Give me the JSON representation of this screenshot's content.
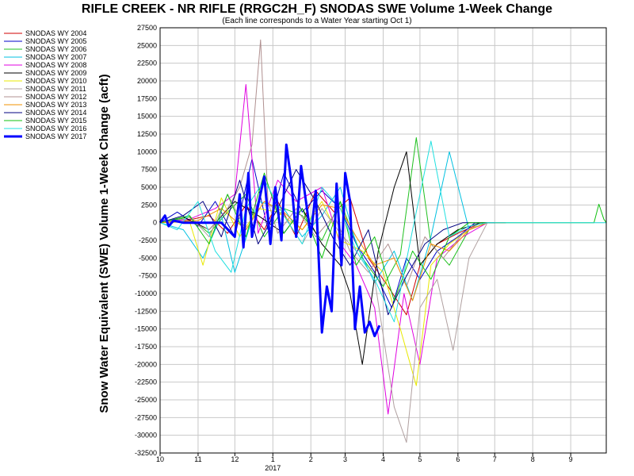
{
  "chart_data": {
    "type": "line",
    "title": "RIFLE CREEK - NR RIFLE (RRGC2H_F) SNODAS SWE Volume 1-Week Change",
    "subtitle": "(Each line corresponds to a Water Year starting Oct 1)",
    "ylabel": "Snow Water Equivalent (SWE) Volume 1-Week Change (acft)",
    "xlabel": "",
    "ylim": [
      -32500,
      27500
    ],
    "y_ticks": [
      27500,
      25000,
      22500,
      20000,
      17500,
      15000,
      12500,
      10000,
      7500,
      5000,
      2500,
      0,
      -2500,
      -5000,
      -7500,
      -10000,
      -12500,
      -15000,
      -17500,
      -20000,
      -22500,
      -25000,
      -27500,
      -30000,
      -32500
    ],
    "x_axis": {
      "unit": "month",
      "start": "2016-10-01",
      "end": "2017-09-30",
      "tick_labels": [
        "10",
        "11",
        "12",
        "1",
        "2",
        "3",
        "4",
        "5",
        "6",
        "7",
        "8",
        "9"
      ],
      "year_label": "2017"
    },
    "grid": true,
    "legend_placement": "left",
    "series": [
      {
        "name": "SNODAS WY 2004",
        "color": "#d00000",
        "width": 1,
        "x": [
          "2016-10-01",
          "2016-10-20",
          "2016-11-10",
          "2016-11-25",
          "2016-12-10",
          "2016-12-25",
          "2017-01-05",
          "2017-01-20",
          "2017-02-05",
          "2017-02-20",
          "2017-03-05",
          "2017-03-20",
          "2017-04-05",
          "2017-04-20",
          "2017-05-01",
          "2017-05-15",
          "2017-06-01",
          "2017-06-20",
          "2017-07-10"
        ],
        "y": [
          0,
          200,
          1000,
          -1500,
          2500,
          -1000,
          3000,
          -2000,
          4500,
          1500,
          3500,
          -5000,
          -9000,
          -13000,
          -6000,
          -3000,
          -1500,
          0,
          0
        ]
      },
      {
        "name": "SNODAS WY 2005",
        "color": "#0000c8",
        "width": 1,
        "x": [
          "2016-10-01",
          "2016-10-15",
          "2016-11-01",
          "2016-11-15",
          "2016-12-01",
          "2016-12-15",
          "2016-12-28",
          "2017-01-10",
          "2017-01-25",
          "2017-02-10",
          "2017-02-25",
          "2017-03-10",
          "2017-03-25",
          "2017-04-08",
          "2017-04-20",
          "2017-05-01",
          "2017-05-15",
          "2017-06-01",
          "2017-06-15",
          "2017-07-01"
        ],
        "y": [
          0,
          1500,
          -500,
          3000,
          -2000,
          9000,
          -1000,
          7000,
          1500,
          4500,
          2000,
          -3000,
          -7000,
          -12000,
          -5000,
          -8000,
          -4000,
          -2000,
          0,
          0
        ]
      },
      {
        "name": "SNODAS WY 2006",
        "color": "#20c020",
        "width": 1,
        "x": [
          "2016-10-01",
          "2016-10-25",
          "2016-11-10",
          "2016-11-25",
          "2016-12-10",
          "2016-12-25",
          "2017-01-10",
          "2017-01-25",
          "2017-02-10",
          "2017-02-25",
          "2017-03-15",
          "2017-04-01",
          "2017-04-15",
          "2017-04-28",
          "2017-05-10",
          "2017-05-25",
          "2017-06-10",
          "2017-06-25"
        ],
        "y": [
          0,
          800,
          -1500,
          1500,
          4000,
          -2000,
          2000,
          1000,
          -2500,
          3000,
          -5000,
          -9000,
          -4500,
          12000,
          -3000,
          -6000,
          -1000,
          0
        ]
      },
      {
        "name": "SNODAS WY 2007",
        "color": "#00c0e0",
        "width": 1,
        "x": [
          "2016-10-01",
          "2016-10-20",
          "2016-11-05",
          "2016-11-20",
          "2016-12-01",
          "2016-12-20",
          "2017-01-10",
          "2017-01-25",
          "2017-02-10",
          "2017-02-25",
          "2017-03-10",
          "2017-03-25",
          "2017-04-10",
          "2017-04-25",
          "2017-05-10",
          "2017-05-25",
          "2017-06-10",
          "2017-06-25"
        ],
        "y": [
          0,
          -1000,
          -5000,
          1000,
          -7000,
          3000,
          2000,
          -2000,
          1000,
          5000,
          -3000,
          -8500,
          -4000,
          -11000,
          -2000,
          10000,
          -1000,
          0
        ]
      },
      {
        "name": "SNODAS WY 2008",
        "color": "#e000e0",
        "width": 1,
        "x": [
          "2016-10-01",
          "2016-10-25",
          "2016-11-15",
          "2016-12-01",
          "2016-12-10",
          "2016-12-20",
          "2017-01-05",
          "2017-01-20",
          "2017-02-10",
          "2017-02-25",
          "2017-03-10",
          "2017-03-25",
          "2017-04-05",
          "2017-04-18",
          "2017-05-01",
          "2017-05-15",
          "2017-06-05",
          "2017-06-25"
        ],
        "y": [
          0,
          500,
          2000,
          4000,
          19500,
          -1500,
          6000,
          3000,
          5000,
          -3000,
          -6000,
          -12000,
          -27000,
          -10000,
          -20000,
          -5000,
          -2000,
          0
        ]
      },
      {
        "name": "SNODAS WY 2009",
        "color": "#000000",
        "width": 1,
        "x": [
          "2016-10-01",
          "2016-10-20",
          "2016-11-10",
          "2016-12-01",
          "2016-12-20",
          "2017-01-10",
          "2017-01-25",
          "2017-02-10",
          "2017-02-25",
          "2017-03-05",
          "2017-03-15",
          "2017-03-28",
          "2017-04-10",
          "2017-04-20",
          "2017-05-01",
          "2017-05-15",
          "2017-06-01",
          "2017-06-20"
        ],
        "y": [
          0,
          800,
          -1000,
          3000,
          1000,
          -1500,
          2000,
          -3000,
          -6000,
          -10000,
          -20000,
          -4000,
          5000,
          10000,
          -6000,
          -3000,
          -1000,
          0
        ]
      },
      {
        "name": "SNODAS WY 2010",
        "color": "#e8e800",
        "width": 1,
        "x": [
          "2016-10-01",
          "2016-10-25",
          "2016-11-05",
          "2016-11-20",
          "2016-12-05",
          "2016-12-20",
          "2017-01-05",
          "2017-01-25",
          "2017-02-10",
          "2017-02-25",
          "2017-03-15",
          "2017-04-01",
          "2017-04-15",
          "2017-04-28",
          "2017-05-10",
          "2017-05-25",
          "2017-06-10",
          "2017-06-25"
        ],
        "y": [
          0,
          200,
          -6000,
          3500,
          -2000,
          2000,
          1500,
          -1000,
          3000,
          -2500,
          -4000,
          -7000,
          -15000,
          -23000,
          -6000,
          -3000,
          -1000,
          0
        ]
      },
      {
        "name": "SNODAS WY 2011",
        "color": "#b0a0a0",
        "width": 1,
        "x": [
          "2016-10-01",
          "2016-10-25",
          "2016-11-10",
          "2016-11-25",
          "2016-12-10",
          "2016-12-25",
          "2017-01-10",
          "2017-01-25",
          "2017-02-10",
          "2017-02-25",
          "2017-03-10",
          "2017-03-25",
          "2017-04-10",
          "2017-04-20",
          "2017-05-01",
          "2017-05-15",
          "2017-05-28",
          "2017-06-10",
          "2017-06-25"
        ],
        "y": [
          0,
          1000,
          -2000,
          4000,
          -1000,
          3000,
          1000,
          -3000,
          2000,
          -1500,
          -4000,
          -8000,
          -26000,
          -31000,
          -12000,
          -8000,
          -18000,
          -5000,
          0
        ]
      },
      {
        "name": "SNODAS WY 2012",
        "color": "#b09090",
        "width": 1,
        "x": [
          "2016-10-01",
          "2016-10-20",
          "2016-11-10",
          "2016-11-25",
          "2016-12-05",
          "2016-12-15",
          "2016-12-22",
          "2016-12-28",
          "2017-01-05",
          "2017-01-20",
          "2017-02-05",
          "2017-02-20",
          "2017-03-05",
          "2017-03-20",
          "2017-04-05",
          "2017-04-20",
          "2017-05-05",
          "2017-05-20",
          "2017-06-05",
          "2017-06-20"
        ],
        "y": [
          0,
          500,
          -1000,
          2000,
          5000,
          11000,
          25800,
          3000,
          -1500,
          2000,
          -2000,
          1000,
          -4000,
          -7000,
          -3000,
          -9000,
          -2000,
          -5000,
          -1500,
          0
        ]
      },
      {
        "name": "SNODAS WY 2013",
        "color": "#f09000",
        "width": 1,
        "x": [
          "2016-10-01",
          "2016-11-01",
          "2016-11-20",
          "2016-12-10",
          "2016-12-25",
          "2017-01-10",
          "2017-01-25",
          "2017-02-10",
          "2017-02-25",
          "2017-03-10",
          "2017-03-25",
          "2017-04-10",
          "2017-04-25",
          "2017-05-10",
          "2017-05-25",
          "2017-06-10",
          "2017-06-25"
        ],
        "y": [
          0,
          300,
          2000,
          -1000,
          3000,
          1500,
          -1000,
          2500,
          2000,
          -2000,
          -6000,
          -5000,
          -11000,
          -3000,
          -4000,
          -1000,
          0
        ]
      },
      {
        "name": "SNODAS WY 2014",
        "color": "#000080",
        "width": 1,
        "x": [
          "2016-10-01",
          "2016-10-20",
          "2016-11-05",
          "2016-11-20",
          "2016-12-05",
          "2016-12-20",
          "2017-01-05",
          "2017-01-20",
          "2017-02-05",
          "2017-02-20",
          "2017-03-05",
          "2017-03-20",
          "2017-04-05",
          "2017-04-20",
          "2017-05-05",
          "2017-05-20",
          "2017-06-05",
          "2017-06-25"
        ],
        "y": [
          0,
          1000,
          3000,
          -2000,
          6000,
          -3000,
          2000,
          7500,
          3000,
          -2500,
          -6000,
          -1000,
          -13000,
          -7500,
          -3000,
          -1000,
          0,
          0
        ]
      },
      {
        "name": "SNODAS WY 2015",
        "color": "#10c010",
        "width": 1,
        "x": [
          "2016-10-01",
          "2016-10-25",
          "2016-11-10",
          "2016-11-25",
          "2016-12-10",
          "2016-12-25",
          "2017-01-10",
          "2017-01-25",
          "2017-02-10",
          "2017-02-25",
          "2017-03-10",
          "2017-03-25",
          "2017-04-10",
          "2017-04-25",
          "2017-05-10",
          "2017-05-25",
          "2017-06-10",
          "2017-07-01",
          "2017-09-20",
          "2017-09-24",
          "2017-09-28",
          "2017-09-30"
        ],
        "y": [
          0,
          1000,
          -3000,
          4000,
          -2000,
          7000,
          -1500,
          2000,
          -5000,
          3000,
          -6000,
          -2000,
          -11000,
          -4000,
          -8000,
          -2000,
          0,
          0,
          0,
          2600,
          500,
          0
        ]
      },
      {
        "name": "SNODAS WY 2016",
        "color": "#20e0e0",
        "width": 1,
        "x": [
          "2016-10-01",
          "2016-10-15",
          "2016-11-01",
          "2016-11-15",
          "2016-11-28",
          "2016-12-10",
          "2016-12-25",
          "2017-01-10",
          "2017-01-25",
          "2017-02-10",
          "2017-02-25",
          "2017-03-10",
          "2017-03-25",
          "2017-04-10",
          "2017-04-25",
          "2017-05-10",
          "2017-05-25",
          "2017-06-10",
          "2017-06-25",
          "2017-07-10",
          "2017-09-30"
        ],
        "y": [
          0,
          -1000,
          3000,
          -4000,
          -7000,
          2000,
          6000,
          1000,
          -3000,
          5000,
          2000,
          -4000,
          -8000,
          -14000,
          -1000,
          11500,
          -2000,
          -500,
          0,
          0,
          0
        ]
      },
      {
        "name": "SNODAS WY 2017",
        "color": "#0000ff",
        "width": 3,
        "x": [
          "2016-10-01",
          "2016-10-05",
          "2016-10-08",
          "2016-10-12",
          "2016-10-20",
          "2016-11-01",
          "2016-11-10",
          "2016-11-20",
          "2016-12-01",
          "2016-12-05",
          "2016-12-08",
          "2016-12-12",
          "2016-12-15",
          "2016-12-20",
          "2016-12-25",
          "2016-12-30",
          "2017-01-03",
          "2017-01-08",
          "2017-01-12",
          "2017-01-16",
          "2017-01-20",
          "2017-01-24",
          "2017-01-28",
          "2017-02-01",
          "2017-02-05",
          "2017-02-10",
          "2017-02-14",
          "2017-02-18",
          "2017-02-22",
          "2017-02-26",
          "2017-03-01",
          "2017-03-05",
          "2017-03-09",
          "2017-03-13",
          "2017-03-17",
          "2017-03-21",
          "2017-03-25",
          "2017-03-29"
        ],
        "y": [
          0,
          1000,
          -500,
          300,
          0,
          0,
          0,
          0,
          -2000,
          4000,
          -3500,
          7000,
          -2000,
          2500,
          6500,
          -3000,
          5000,
          -2500,
          11000,
          6000,
          -2000,
          8000,
          3000,
          -2000,
          4500,
          -15500,
          -9000,
          -12500,
          5500,
          -6000,
          7000,
          3000,
          -15000,
          -9000,
          -15500,
          -14000,
          -16000,
          -14500
        ]
      }
    ]
  }
}
